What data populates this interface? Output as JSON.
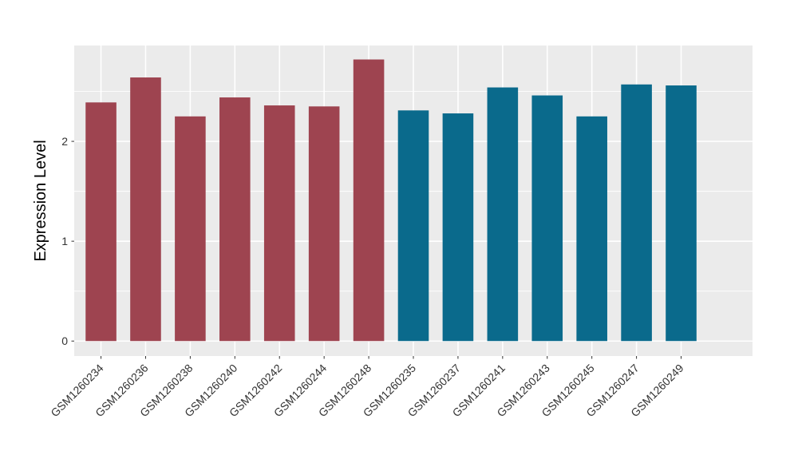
{
  "figure": {
    "background": "#FFFFFF",
    "panel_background": "#EBEBEB",
    "gridline_color": "#FFFFFF",
    "tick_mark_color": "#333333",
    "tick_label_color": "#333333",
    "axis_title_color": "#000000"
  },
  "chart_data": {
    "type": "bar",
    "title": "",
    "xlabel": "",
    "ylabel": "Expression Level",
    "categories": [
      "GSM1260234",
      "GSM1260236",
      "GSM1260238",
      "GSM1260240",
      "GSM1260242",
      "GSM1260244",
      "GSM1260248",
      "GSM1260235",
      "GSM1260237",
      "GSM1260241",
      "GSM1260243",
      "GSM1260245",
      "GSM1260247",
      "GSM1260249"
    ],
    "values": [
      2.39,
      2.64,
      2.25,
      2.44,
      2.36,
      2.35,
      2.82,
      2.31,
      2.28,
      2.54,
      2.46,
      2.25,
      2.57,
      2.56
    ],
    "groups": [
      0,
      0,
      0,
      0,
      0,
      0,
      0,
      1,
      1,
      1,
      1,
      1,
      1,
      1
    ],
    "group_colors": [
      "#9E4450",
      "#0A6A8C"
    ],
    "yticks": [
      0,
      1,
      2
    ],
    "yticks_minor": [
      0.5,
      1.5,
      2.5
    ],
    "ylim": [
      -0.15,
      2.96
    ],
    "grid": true,
    "legend_position": "none",
    "bar_width_fraction": 0.69,
    "x_label_rotation": 45
  }
}
